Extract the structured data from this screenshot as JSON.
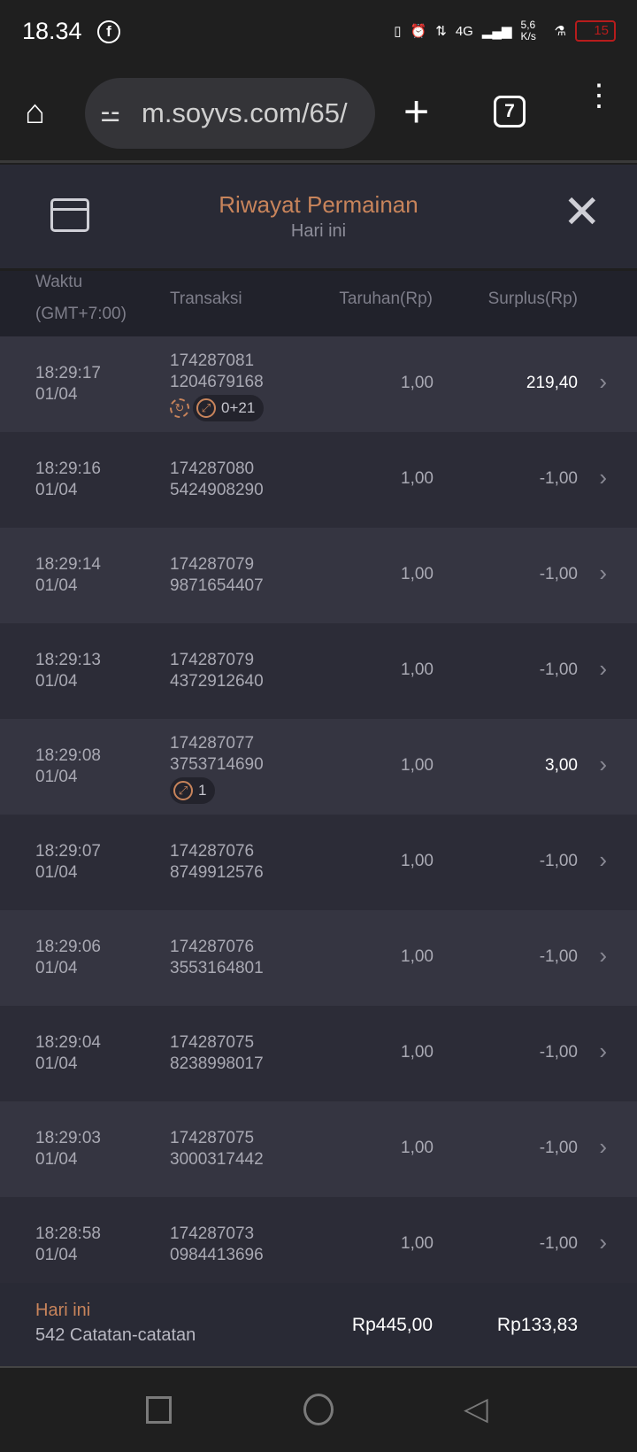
{
  "status_bar": {
    "time": "18.34",
    "network": "4G",
    "speed": "5,6 K/s",
    "battery": "15"
  },
  "browser": {
    "url": "m.soyvs.com/65/",
    "tab_count": "7"
  },
  "header": {
    "title": "Riwayat Permainan",
    "subtitle": "Hari ini"
  },
  "columns": {
    "time": "Waktu",
    "timezone": "(GMT+7:00)",
    "transaction": "Transaksi",
    "bet": "Taruhan(Rp)",
    "surplus": "Surplus(Rp)"
  },
  "accent_color": "#c8845b",
  "rows": [
    {
      "time": "18:29:17",
      "date": "01/04",
      "tx1": "174287081",
      "tx2": "1204679168",
      "bet": "1,00",
      "surplus": "219,40",
      "win": true,
      "respin_icon": true,
      "badge": "0+21"
    },
    {
      "time": "18:29:16",
      "date": "01/04",
      "tx1": "174287080",
      "tx2": "5424908290",
      "bet": "1,00",
      "surplus": "-1,00"
    },
    {
      "time": "18:29:14",
      "date": "01/04",
      "tx1": "174287079",
      "tx2": "9871654407",
      "bet": "1,00",
      "surplus": "-1,00"
    },
    {
      "time": "18:29:13",
      "date": "01/04",
      "tx1": "174287079",
      "tx2": "4372912640",
      "bet": "1,00",
      "surplus": "-1,00"
    },
    {
      "time": "18:29:08",
      "date": "01/04",
      "tx1": "174287077",
      "tx2": "3753714690",
      "bet": "1,00",
      "surplus": "3,00",
      "win": true,
      "badge": "1"
    },
    {
      "time": "18:29:07",
      "date": "01/04",
      "tx1": "174287076",
      "tx2": "8749912576",
      "bet": "1,00",
      "surplus": "-1,00"
    },
    {
      "time": "18:29:06",
      "date": "01/04",
      "tx1": "174287076",
      "tx2": "3553164801",
      "bet": "1,00",
      "surplus": "-1,00"
    },
    {
      "time": "18:29:04",
      "date": "01/04",
      "tx1": "174287075",
      "tx2": "8238998017",
      "bet": "1,00",
      "surplus": "-1,00"
    },
    {
      "time": "18:29:03",
      "date": "01/04",
      "tx1": "174287075",
      "tx2": "3000317442",
      "bet": "1,00",
      "surplus": "-1,00"
    },
    {
      "time": "18:28:58",
      "date": "01/04",
      "tx1": "174287073",
      "tx2": "0984413696",
      "bet": "1,00",
      "surplus": "-1,00"
    }
  ],
  "footer": {
    "period": "Hari ini",
    "records": "542 Catatan-catatan",
    "total_bet": "Rp445,00",
    "total_surplus": "Rp133,83"
  }
}
